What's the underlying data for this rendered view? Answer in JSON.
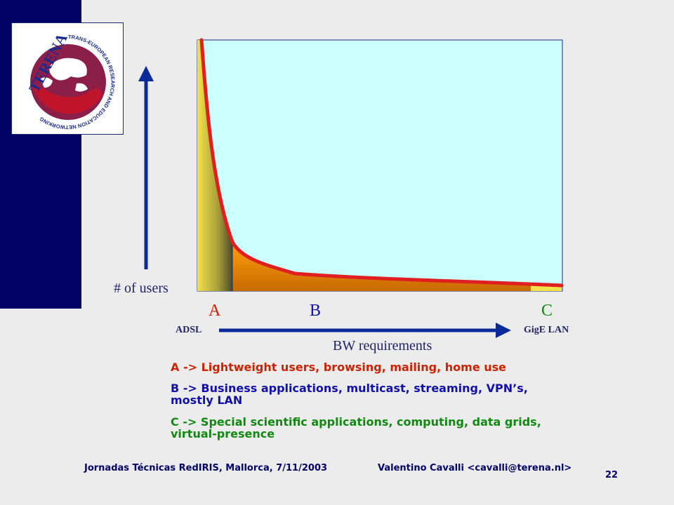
{
  "slide": {
    "logo": {
      "wordmark": "TERENA",
      "ring_text": "TRANS-EUROPEAN RESEARCH AND EDUCATION NETWORKING ASSOCIATION"
    },
    "axes": {
      "y_label": "# of users",
      "x_label": "BW requirements",
      "x_start": "ADSL",
      "x_end": "GigE LAN"
    },
    "segments": {
      "a": "A",
      "b": "B",
      "c": "C"
    },
    "descriptions": {
      "a": "A -> Lightweight users, browsing, mailing, home use",
      "b_line1": "B -> Business applications, multicast, streaming, VPN’s,",
      "b_line2": "mostly LAN",
      "c_line1": "C -> Special scientific applications, computing, data grids,",
      "c_line2": "virtual-presence"
    },
    "footer": {
      "event": "Jornadas Técnicas RedIRIS, Mallorca, 7/11/2003",
      "author": "Valentino Cavalli <cavalli@terena.nl>",
      "page": "22"
    },
    "colors": {
      "sidebar": "#000066",
      "plot_background": "#ccffff",
      "curve": "#e02020",
      "segment_a": "#cc2200",
      "segment_b": "#1111aa",
      "segment_c": "#118811"
    }
  }
}
